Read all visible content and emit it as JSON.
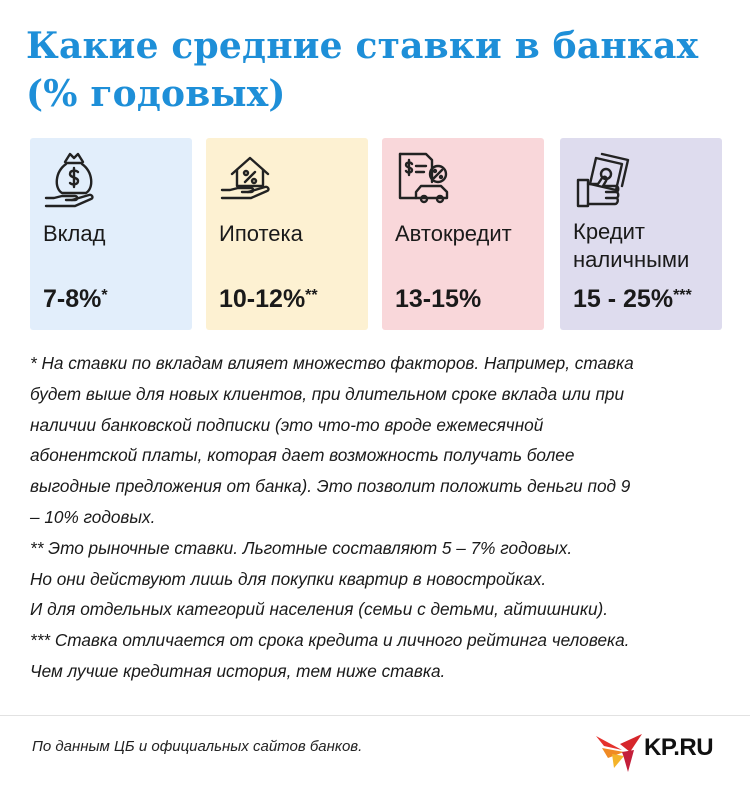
{
  "header": {
    "title_line1": "Какие средние ставки в банках",
    "title_line2": "(% годовых)"
  },
  "colors": {
    "title": "#1e8fd8",
    "card_deposit": "#e2eefb",
    "card_mortgage": "#fdf1d2",
    "card_auto": "#f9d7da",
    "card_cash": "#dedcee"
  },
  "cards": [
    {
      "icon": "money-bag-hand-icon",
      "label": "Вклад",
      "value": "7-8%",
      "mark": "*"
    },
    {
      "icon": "house-percent-hand-icon",
      "label": "Ипотека",
      "value": "10-12%",
      "mark": "**"
    },
    {
      "icon": "car-document-percent-icon",
      "label": "Автокредит",
      "value": "13-15%",
      "mark": ""
    },
    {
      "icon": "cash-hand-icon",
      "label_line1": "Кредит",
      "label_line2": "наличными",
      "value": "15 - 25%",
      "mark": "***"
    }
  ],
  "notes": {
    "deposit": [
      "* На ставки по вкладам влияет множество факторов. Например, ставка",
      "будет выше для новых клиентов, при длительном сроке вклада или при",
      "наличии банковской подписки (это что-то вроде ежемесячной",
      "абонентской платы, которая дает возможность получать более",
      "выгодные предложения от банка). Это позволит положить деньги под 9",
      "– 10% годовых."
    ],
    "mortgage": [
      "** Это рыночные ставки. Льготные составляют 5 – 7% годовых.",
      "Но они действуют лишь для покупки квартир в новостройках.",
      "И для отдельных категорий населения (семьи с детьми, айтишники)."
    ],
    "cash": [
      "*** Ставка отличается от срока кредита и личного рейтинга человека.",
      "Чем лучше кредитная история, тем ниже ставка."
    ]
  },
  "footer": {
    "source": "По данным ЦБ и официальных сайтов банков.",
    "logo_text": "KP.RU"
  }
}
